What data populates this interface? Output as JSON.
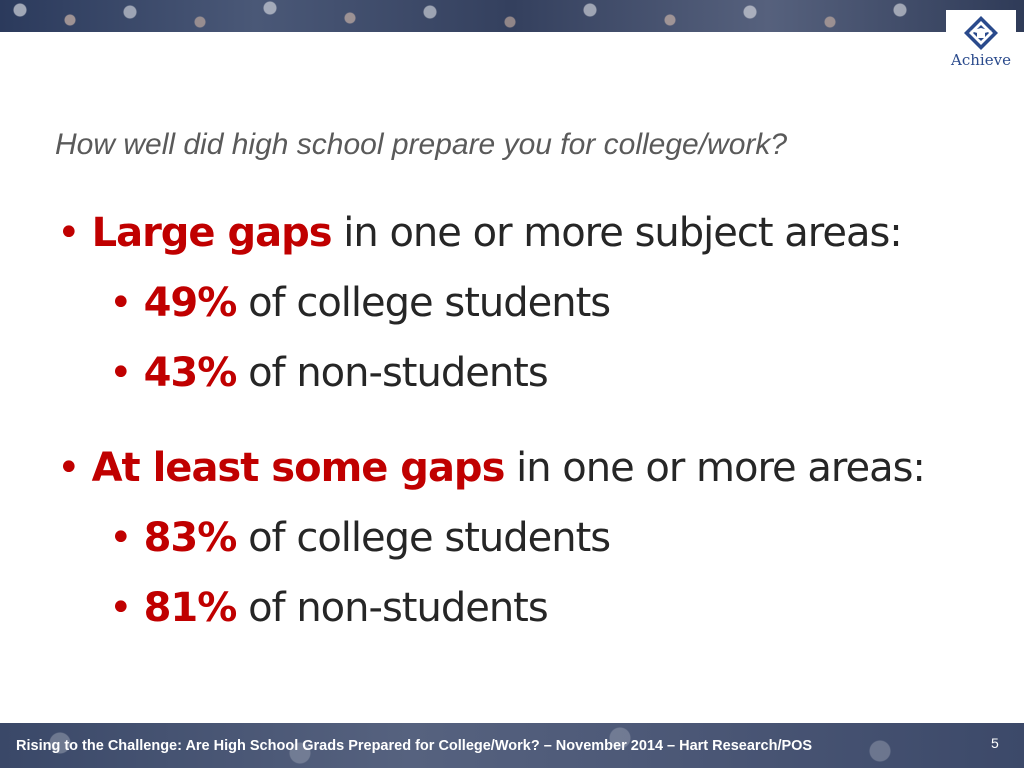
{
  "header": {
    "logo_text": "Achieve",
    "colors": {
      "logo_blue": "#2a4a8c",
      "accent_red": "#c00000"
    }
  },
  "subtitle": "How well did high school prepare you for college/work?",
  "sections": [
    {
      "highlight": "Large gaps",
      "text": "in one or more subject areas:",
      "items": [
        {
          "highlight": "49%",
          "text": "of college students"
        },
        {
          "highlight": "43%",
          "text": "of non-students"
        }
      ]
    },
    {
      "highlight": "At least some gaps",
      "text": "in one or more areas:",
      "items": [
        {
          "highlight": "83%",
          "text": "of college students"
        },
        {
          "highlight": "81%",
          "text": "of non-students"
        }
      ]
    }
  ],
  "footer": {
    "text": "Rising to the Challenge:  Are High School Grads Prepared for College/Work? – November 2014 – Hart Research/POS",
    "page_number": "5"
  }
}
